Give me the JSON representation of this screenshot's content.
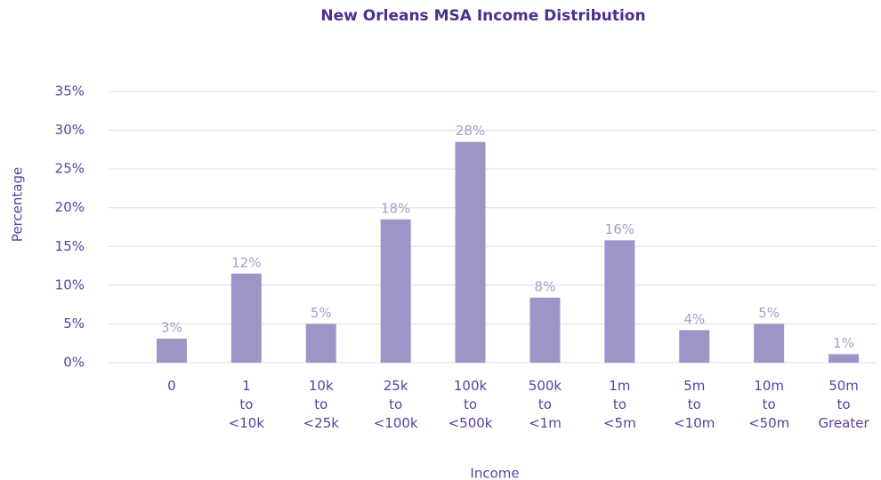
{
  "chart_data": {
    "type": "bar",
    "title": "New Orleans MSA Income Distribution",
    "x_label": "Income",
    "y_label": "Percentage",
    "categories": [
      [
        "0"
      ],
      [
        "1",
        "to",
        "<10k"
      ],
      [
        "10k",
        "to",
        "<25k"
      ],
      [
        "25k",
        "to",
        "<100k"
      ],
      [
        "100k",
        "to",
        "<500k"
      ],
      [
        "500k",
        "to",
        "<1m"
      ],
      [
        "1m",
        "to",
        "<5m"
      ],
      [
        "5m",
        "to",
        "<10m"
      ],
      [
        "10m",
        "to",
        "<50m"
      ],
      [
        "50m",
        "to",
        "Greater"
      ]
    ],
    "values": [
      3.1,
      11.5,
      5.0,
      18.5,
      28.5,
      8.4,
      15.8,
      4.2,
      5.0,
      1.1
    ],
    "value_labels": [
      "3%",
      "12%",
      "5%",
      "18%",
      "28%",
      "8%",
      "16%",
      "4%",
      "5%",
      "1%"
    ],
    "color": "#9e94c8",
    "ylim": [
      0,
      35
    ],
    "yticks": [
      {
        "value": 0,
        "label": "0%"
      },
      {
        "value": 5,
        "label": "5%"
      },
      {
        "value": 10,
        "label": "10%"
      },
      {
        "value": 15,
        "label": "15%"
      },
      {
        "value": 20,
        "label": "20%"
      },
      {
        "value": 25,
        "label": "25%"
      },
      {
        "value": 30,
        "label": "30%"
      },
      {
        "value": 35,
        "label": "35%"
      }
    ],
    "grid": true
  }
}
